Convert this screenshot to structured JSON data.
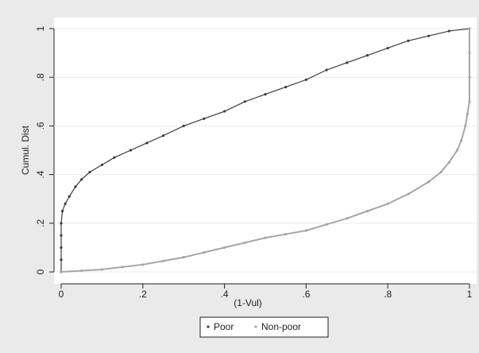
{
  "chart_data": {
    "type": "scatter",
    "xlabel": "(1-Vul)",
    "ylabel": "Cumul. Dist",
    "xlim": [
      0,
      1
    ],
    "ylim": [
      0,
      1
    ],
    "xticks": [
      0,
      {
        "value": 0.2,
        "label": ".2"
      },
      {
        "value": 0.4,
        "label": ".4"
      },
      {
        "value": 0.6,
        "label": ".6"
      },
      {
        "value": 0.8,
        "label": ".8"
      },
      1
    ],
    "yticks": [
      0,
      {
        "value": 0.2,
        "label": ".2"
      },
      {
        "value": 0.4,
        "label": ".4"
      },
      {
        "value": 0.6,
        "label": ".6"
      },
      {
        "value": 0.8,
        "label": ".8"
      },
      1
    ],
    "grid": true,
    "legend": "bottom",
    "series": [
      {
        "name": "Poor",
        "color": "#3c3c3c",
        "x": [
          0,
          0,
          0,
          0,
          0,
          0.003,
          0.01,
          0.02,
          0.035,
          0.05,
          0.07,
          0.1,
          0.13,
          0.17,
          0.21,
          0.25,
          0.3,
          0.35,
          0.4,
          0.45,
          0.5,
          0.55,
          0.6,
          0.65,
          0.7,
          0.75,
          0.8,
          0.85,
          0.9,
          0.95,
          1
        ],
        "values": [
          0,
          0.05,
          0.1,
          0.15,
          0.2,
          0.25,
          0.28,
          0.31,
          0.35,
          0.38,
          0.41,
          0.44,
          0.47,
          0.5,
          0.53,
          0.56,
          0.6,
          0.63,
          0.66,
          0.7,
          0.73,
          0.76,
          0.79,
          0.83,
          0.86,
          0.89,
          0.92,
          0.95,
          0.97,
          0.99,
          1
        ]
      },
      {
        "name": "Non-poor",
        "color": "#a6a6a6",
        "x": [
          0,
          0.05,
          0.1,
          0.15,
          0.2,
          0.25,
          0.3,
          0.35,
          0.4,
          0.45,
          0.5,
          0.55,
          0.6,
          0.65,
          0.7,
          0.75,
          0.8,
          0.85,
          0.9,
          0.93,
          0.95,
          0.97,
          0.98,
          0.99,
          0.995,
          1,
          1,
          1,
          1
        ],
        "values": [
          0,
          0.005,
          0.01,
          0.02,
          0.03,
          0.045,
          0.06,
          0.08,
          0.1,
          0.12,
          0.14,
          0.155,
          0.17,
          0.195,
          0.22,
          0.25,
          0.28,
          0.32,
          0.37,
          0.41,
          0.45,
          0.5,
          0.54,
          0.6,
          0.65,
          0.7,
          0.8,
          0.9,
          1
        ]
      }
    ]
  }
}
